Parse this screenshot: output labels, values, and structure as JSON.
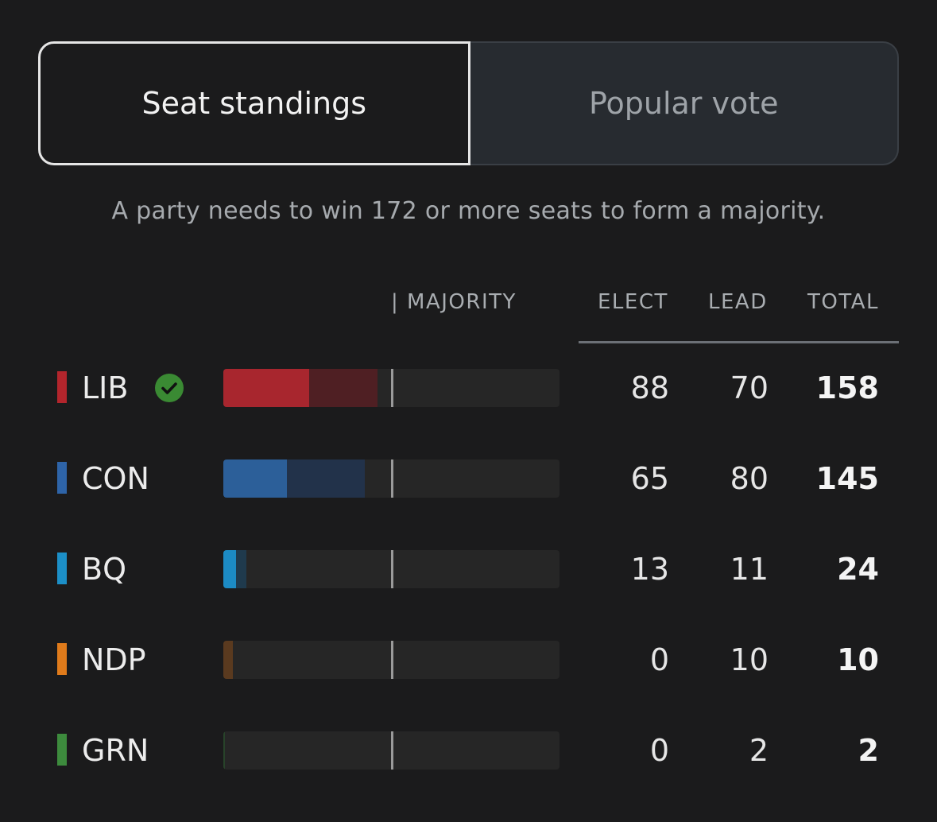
{
  "tabs": {
    "seat_standings": "Seat standings",
    "popular_vote": "Popular vote"
  },
  "subtitle": "A party needs to win 172 or more seats to form a majority.",
  "majority_seats": 172,
  "headers": {
    "majority": "| MAJORITY",
    "elect": "ELECT",
    "lead": "LEAD",
    "total": "TOTAL"
  },
  "parties": [
    {
      "name": "LIB",
      "elect": "88",
      "lead": "70",
      "total": "158",
      "winner": true,
      "color": "#b3252c",
      "elect_color": "#a8262e",
      "lead_color": "#4f1f23"
    },
    {
      "name": "CON",
      "elect": "65",
      "lead": "80",
      "total": "145",
      "winner": false,
      "color": "#2e64a8",
      "elect_color": "#2c5f99",
      "lead_color": "#22324a"
    },
    {
      "name": "BQ",
      "elect": "13",
      "lead": "11",
      "total": "24",
      "winner": false,
      "color": "#1c8fc7",
      "elect_color": "#1c8bc4",
      "lead_color": "#1f3a4d"
    },
    {
      "name": "NDP",
      "elect": "0",
      "lead": "10",
      "total": "10",
      "winner": false,
      "color": "#e07b1b",
      "elect_color": "#e07b1b",
      "lead_color": "#5a3a1f"
    },
    {
      "name": "GRN",
      "elect": "0",
      "lead": "2",
      "total": "2",
      "winner": false,
      "color": "#3d8b3d",
      "elect_color": "#3d8b3d",
      "lead_color": "#28432a"
    }
  ]
}
